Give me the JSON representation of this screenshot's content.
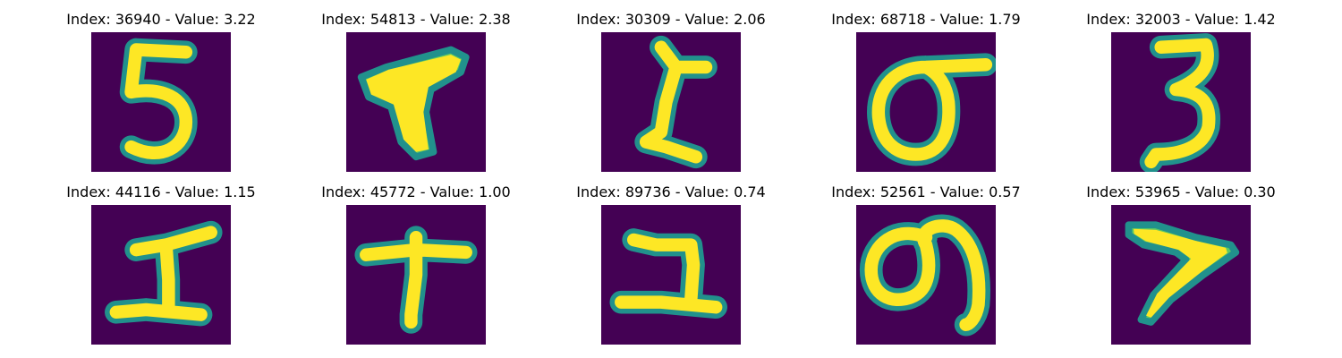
{
  "colors": {
    "background": "#440154",
    "edge": "#21918c",
    "mid": "#5ec962",
    "foreground": "#fde725"
  },
  "panels": [
    {
      "title": "Index: 36940 - Value: 3.22",
      "glyph": "digit-five"
    },
    {
      "title": "Index: 54813 - Value: 2.38",
      "glyph": "thick-seven"
    },
    {
      "title": "Index: 30309 - Value: 2.06",
      "glyph": "serif-one"
    },
    {
      "title": "Index: 68718 - Value: 1.79",
      "glyph": "sigma-zero"
    },
    {
      "title": "Index: 32003 - Value: 1.42",
      "glyph": "digit-three"
    },
    {
      "title": "Index: 44116 - Value: 1.15",
      "glyph": "block-one"
    },
    {
      "title": "Index: 45772 - Value: 1.00",
      "glyph": "cross-one"
    },
    {
      "title": "Index: 89736 - Value: 0.74",
      "glyph": "hook-one"
    },
    {
      "title": "Index: 52561 - Value: 0.57",
      "glyph": "loop-nine"
    },
    {
      "title": "Index: 53965 - Value: 0.30",
      "glyph": "slanted-seven"
    }
  ]
}
